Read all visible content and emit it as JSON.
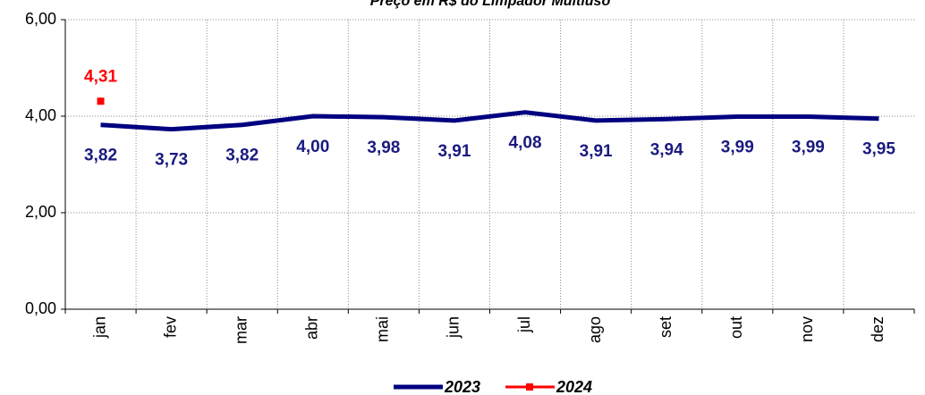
{
  "chart_data": {
    "type": "line",
    "title": "Preço em R$ do Limpador Multiuso",
    "categories": [
      "jan",
      "fev",
      "mar",
      "abr",
      "mai",
      "jun",
      "jul",
      "ago",
      "set",
      "out",
      "nov",
      "dez"
    ],
    "series": [
      {
        "name": "2023",
        "color": "#000080",
        "values": [
          3.82,
          3.73,
          3.82,
          4.0,
          3.98,
          3.91,
          4.08,
          3.91,
          3.94,
          3.99,
          3.99,
          3.95
        ],
        "value_labels": [
          "3,82",
          "3,73",
          "3,82",
          "4,00",
          "3,98",
          "3,91",
          "4,08",
          "3,91",
          "3,94",
          "3,99",
          "3,99",
          "3,95"
        ]
      },
      {
        "name": "2024",
        "color": "#ff0000",
        "marker": "square",
        "values": [
          4.31,
          null,
          null,
          null,
          null,
          null,
          null,
          null,
          null,
          null,
          null,
          null
        ],
        "value_labels": [
          "4,31",
          null,
          null,
          null,
          null,
          null,
          null,
          null,
          null,
          null,
          null,
          null
        ]
      }
    ],
    "ylim": [
      0,
      6
    ],
    "yticks": [
      {
        "value": 0,
        "label": "0,00"
      },
      {
        "value": 2,
        "label": "2,00"
      },
      {
        "value": 4,
        "label": "4,00"
      },
      {
        "value": 6,
        "label": "6,00"
      }
    ],
    "grid": true,
    "legend": "bottom"
  }
}
